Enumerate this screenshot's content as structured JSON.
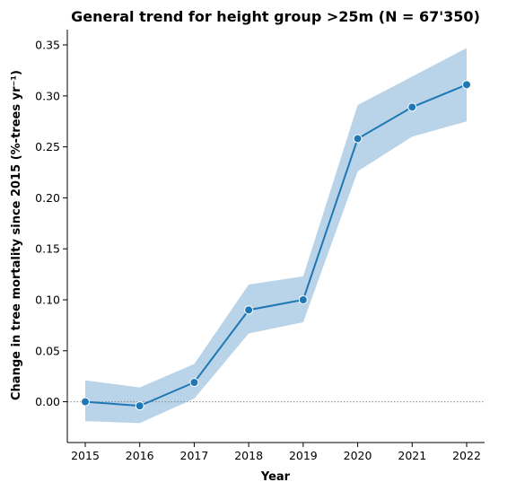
{
  "chart_data": {
    "type": "line",
    "title": "General trend for height group >25m  (N = 67'350)",
    "xlabel": "Year",
    "ylabel": "Change in tree mortality since 2015 (%-trees yr⁻¹)",
    "x": [
      "2015",
      "2016",
      "2017",
      "2018",
      "2019",
      "2020",
      "2021",
      "2022"
    ],
    "series": [
      {
        "values": [
          0.0,
          -0.004,
          0.019,
          0.09,
          0.1,
          0.258,
          0.289,
          0.311
        ],
        "ci_lower": [
          -0.019,
          -0.021,
          0.003,
          0.067,
          0.078,
          0.226,
          0.26,
          0.275
        ],
        "ci_upper": [
          0.021,
          0.014,
          0.037,
          0.115,
          0.123,
          0.291,
          0.319,
          0.347
        ]
      }
    ],
    "ylim": [
      -0.04,
      0.365
    ],
    "yticks": [
      "0.00",
      "0.05",
      "0.10",
      "0.15",
      "0.20",
      "0.25",
      "0.30",
      "0.35"
    ],
    "reference_line": 0,
    "grid": false,
    "colors": {
      "line": "#1f77b4",
      "band": "#b9d4e8",
      "marker_edge": "#ffffff",
      "reference": "#888888"
    }
  }
}
